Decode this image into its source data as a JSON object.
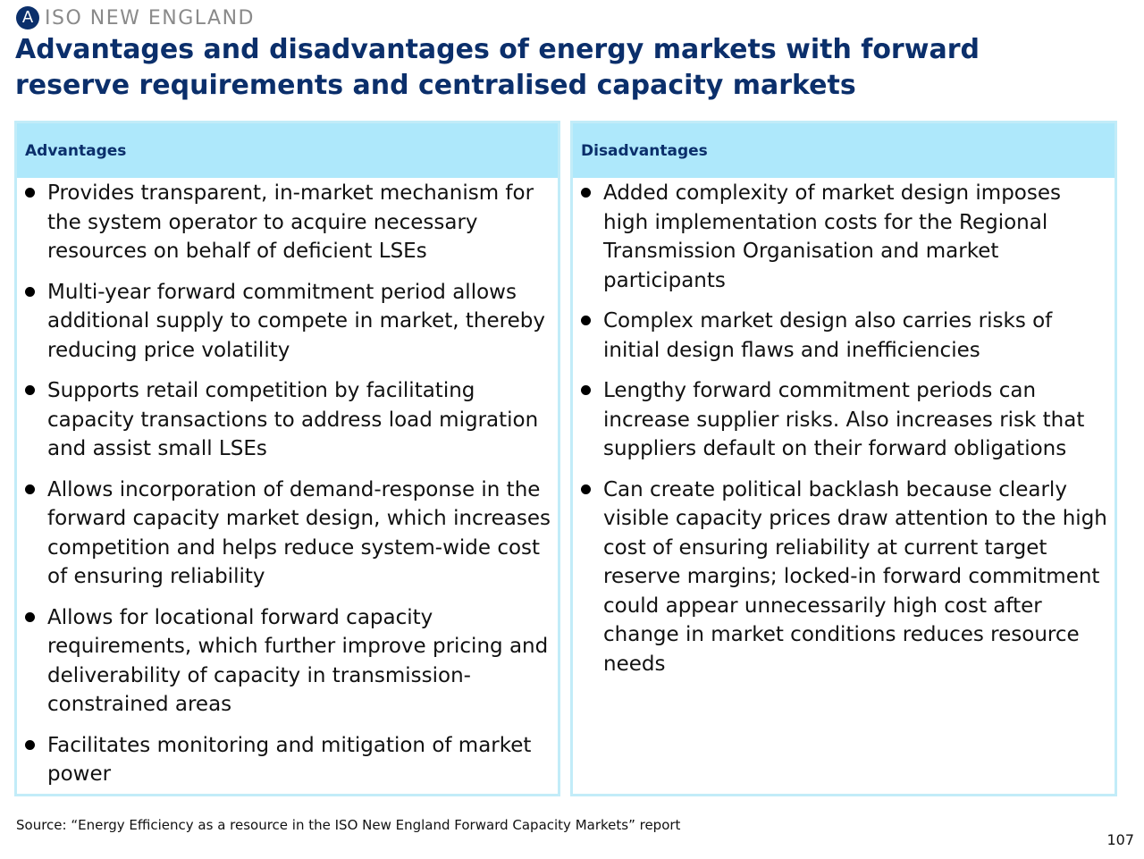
{
  "header": {
    "badge_letter": "A",
    "section_name": "ISO NEW ENGLAND",
    "title": "Advantages and disadvantages of energy markets with forward reserve requirements and centralised capacity markets"
  },
  "advantages": {
    "heading": "Advantages",
    "items": [
      "Provides transparent, in-market mechanism for the system operator to acquire necessary resources on behalf of deficient LSEs",
      "Multi-year forward commitment period allows additional supply to compete in market, thereby reducing price volatility",
      "Supports retail competition by facilitating capacity transactions to address load migration and assist small LSEs",
      "Allows incorporation of demand-response in the forward capacity market design, which increases competition and helps reduce system-wide cost of ensuring reliability",
      "Allows for locational forward capacity requirements, which further improve pricing and deliverability of capacity in transmission-constrained areas",
      "Facilitates monitoring and mitigation of market power"
    ]
  },
  "disadvantages": {
    "heading": "Disadvantages",
    "items": [
      "Added complexity of market design imposes high implementation costs for the Regional Transmission Organisation and market participants",
      "Complex market design also carries risks of initial design flaws and inefficiencies",
      "Lengthy forward commitment periods can increase supplier risks. Also increases risk that suppliers default on their forward obligations",
      "Can create political backlash because clearly visible capacity prices draw attention to the high cost of ensuring reliability at current target reserve margins; locked-in forward commitment could appear unnecessarily high cost after change in market conditions reduces resource needs"
    ]
  },
  "footer": {
    "source": "Source: “Energy Efficiency as a resource in the ISO New England Forward Capacity Markets” report",
    "page_number": "107"
  },
  "colors": {
    "title": "#0b2f6b",
    "header_fill": "#aee8fb",
    "panel_border": "#c2ecf8"
  }
}
